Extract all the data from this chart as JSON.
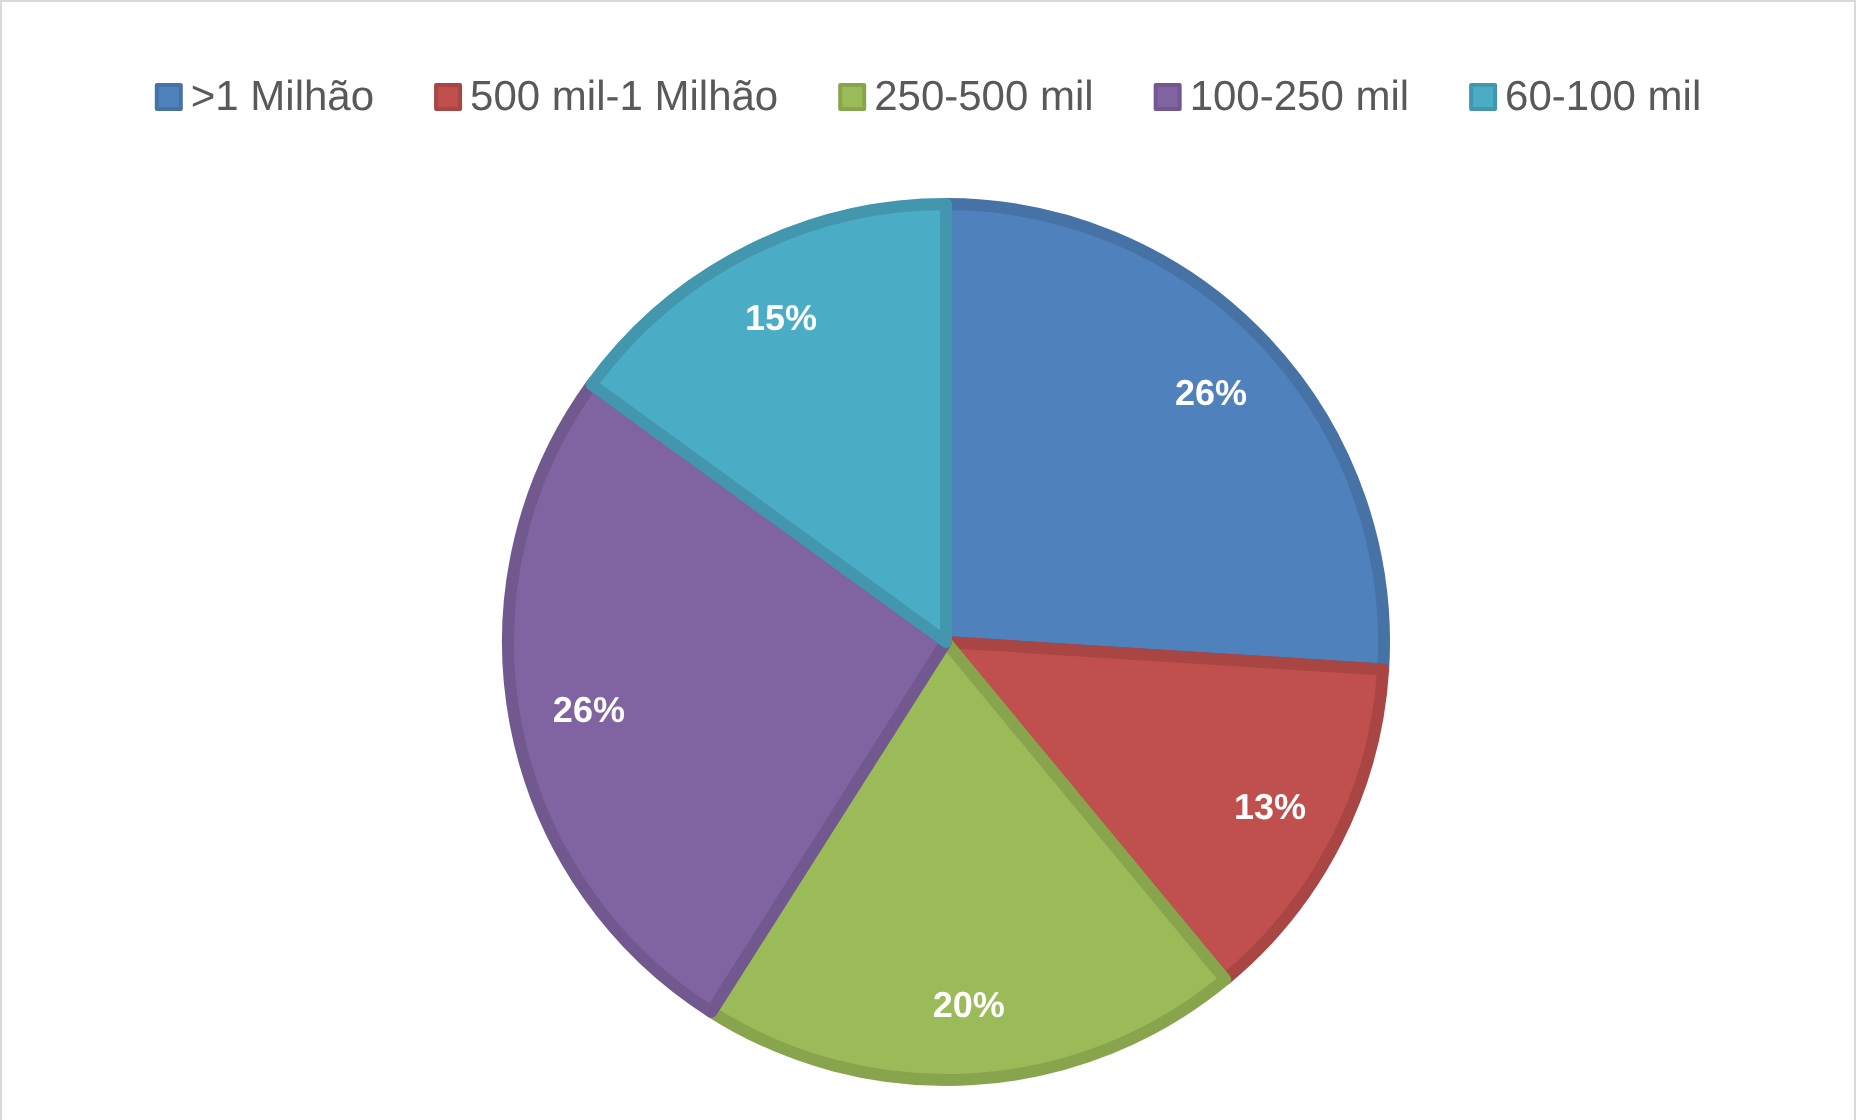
{
  "chart_data": {
    "type": "pie",
    "categories": [
      ">1 Milhão",
      "500 mil-1 Milhão",
      "250-500 mil",
      "100-250 mil",
      "60-100 mil"
    ],
    "values": [
      26,
      13,
      20,
      26,
      15
    ],
    "value_labels": [
      "26%",
      "13%",
      "20%",
      "26%",
      "15%"
    ],
    "colors": [
      "#4f81bd",
      "#c0504d",
      "#9bbb59",
      "#8064a2",
      "#4bacc6"
    ],
    "legend": "top"
  }
}
